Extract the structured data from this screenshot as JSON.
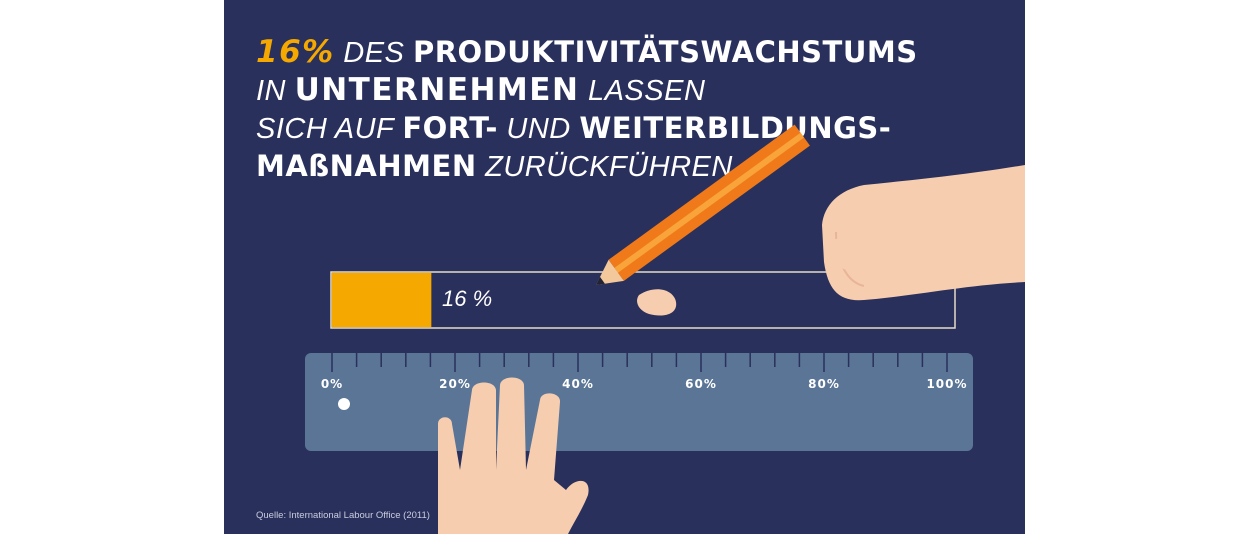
{
  "headline": {
    "l1_highlight": "16%",
    "l1_a": " DES ",
    "l1_b": "PRODUKTIVITÄTSWACHSTUMS",
    "l2_a": "IN ",
    "l2_b": "UNTERNEHMEN",
    "l2_c": " LASSEN",
    "l3_a": "SICH AUF ",
    "l3_b": "FORT-",
    "l3_c": " UND ",
    "l3_d": "WEITERBILDUNGS-",
    "l4_a": "MAßNAHMEN",
    "l4_b": " ZURÜCKFÜHREN."
  },
  "chart_data": {
    "type": "bar",
    "orientation": "horizontal",
    "value": 16,
    "value_label": "16 %",
    "xlim": [
      0,
      100
    ],
    "ticks": [
      "0%",
      "20%",
      "40%",
      "60%",
      "80%",
      "100%"
    ]
  },
  "source": "Quelle: International Labour Office (2011)",
  "colors": {
    "background": "#2a305c",
    "accent": "#f5a800",
    "ruler": "#5b7597",
    "skin": "#f7cdb0",
    "pencil": "#f07a1a"
  },
  "icons": [
    "pencil-icon",
    "hand-icon",
    "ruler-icon"
  ]
}
